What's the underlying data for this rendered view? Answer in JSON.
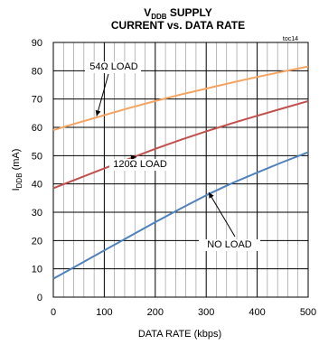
{
  "chart_data": {
    "type": "line",
    "title": {
      "line1_main": "V",
      "line1_sub": "DDB",
      "line1_rest": " SUPPLY",
      "line2": "CURRENT vs. DATA RATE"
    },
    "tag": "toc14",
    "xlabel": "DATA RATE (kbps)",
    "ylabel": {
      "main": "I",
      "sub": "DDB",
      "rest": " (mA)"
    },
    "xlim": [
      0,
      500
    ],
    "ylim": [
      0,
      90
    ],
    "xticks": [
      0,
      100,
      200,
      300,
      400,
      500
    ],
    "yticks": [
      0,
      10,
      20,
      30,
      40,
      50,
      60,
      70,
      80,
      90
    ],
    "grid": true,
    "minor_x_step": 20,
    "series": [
      {
        "name": "54Ω LOAD",
        "color": "#f4a460",
        "x": [
          0,
          50,
          100,
          150,
          200,
          250,
          300,
          350,
          400,
          450,
          500
        ],
        "y": [
          59,
          61.7,
          64.3,
          66.9,
          69.3,
          71.6,
          73.7,
          75.8,
          77.8,
          79.7,
          81.5
        ]
      },
      {
        "name": "120Ω LOAD",
        "color": "#c0504d",
        "x": [
          0,
          50,
          100,
          150,
          200,
          250,
          300,
          350,
          400,
          450,
          500
        ],
        "y": [
          38.5,
          42,
          45.5,
          49,
          52.4,
          55.6,
          58.6,
          61.4,
          64.1,
          66.7,
          69.3
        ]
      },
      {
        "name": "NO LOAD",
        "color": "#4f81bd",
        "x": [
          0,
          50,
          100,
          150,
          200,
          250,
          300,
          350,
          400,
          450,
          500
        ],
        "y": [
          6.5,
          11.5,
          16.5,
          21.5,
          26.5,
          31.3,
          36,
          40.2,
          44,
          47.7,
          51.2
        ]
      }
    ],
    "annotations": [
      {
        "text": "54Ω LOAD",
        "series": 0,
        "x": 85,
        "y": 64
      },
      {
        "text": "120Ω LOAD",
        "series": 1,
        "x": 163,
        "y": 49.5
      },
      {
        "text": "NO LOAD",
        "series": 2,
        "x": 305,
        "y": 37
      }
    ]
  }
}
